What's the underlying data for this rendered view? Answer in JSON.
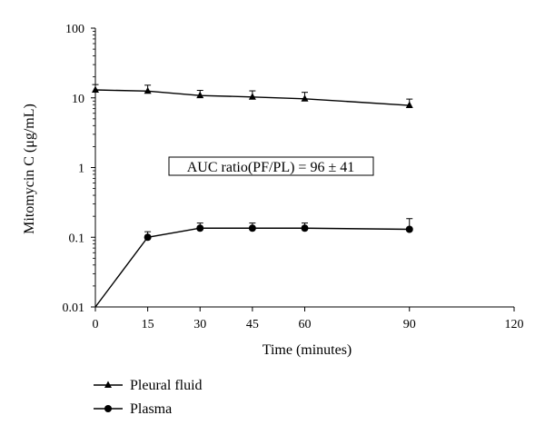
{
  "chart_data": {
    "type": "line",
    "title": "",
    "xlabel": "Time (minutes)",
    "ylabel": "Mitomycin C (μg/mL)",
    "x_ticks": [
      "0",
      "15",
      "30",
      "45",
      "60",
      "90",
      "120"
    ],
    "y_ticks": [
      "0.01",
      "0.1",
      "1",
      "10",
      "100"
    ],
    "xlim": [
      0,
      120
    ],
    "ylim": [
      0.01,
      100
    ],
    "y_scale": "log",
    "grid": false,
    "legend_position": "bottom-left",
    "annotation": "AUC ratio(PF/PL) = 96 ± 41",
    "series": [
      {
        "name": "Pleural fluid",
        "marker": "triangle",
        "x": [
          0,
          15,
          30,
          45,
          60,
          90
        ],
        "y": [
          13,
          12.5,
          10.8,
          10.3,
          9.7,
          7.8
        ],
        "error_upper": [
          15.5,
          15.2,
          12.8,
          12.6,
          12.0,
          9.6
        ]
      },
      {
        "name": "Plasma",
        "marker": "circle",
        "x": [
          0,
          15,
          30,
          45,
          60,
          90
        ],
        "y": [
          0.01,
          0.1,
          0.135,
          0.135,
          0.135,
          0.13
        ],
        "error_upper": [
          null,
          0.12,
          0.16,
          0.16,
          0.16,
          0.185
        ]
      }
    ]
  }
}
